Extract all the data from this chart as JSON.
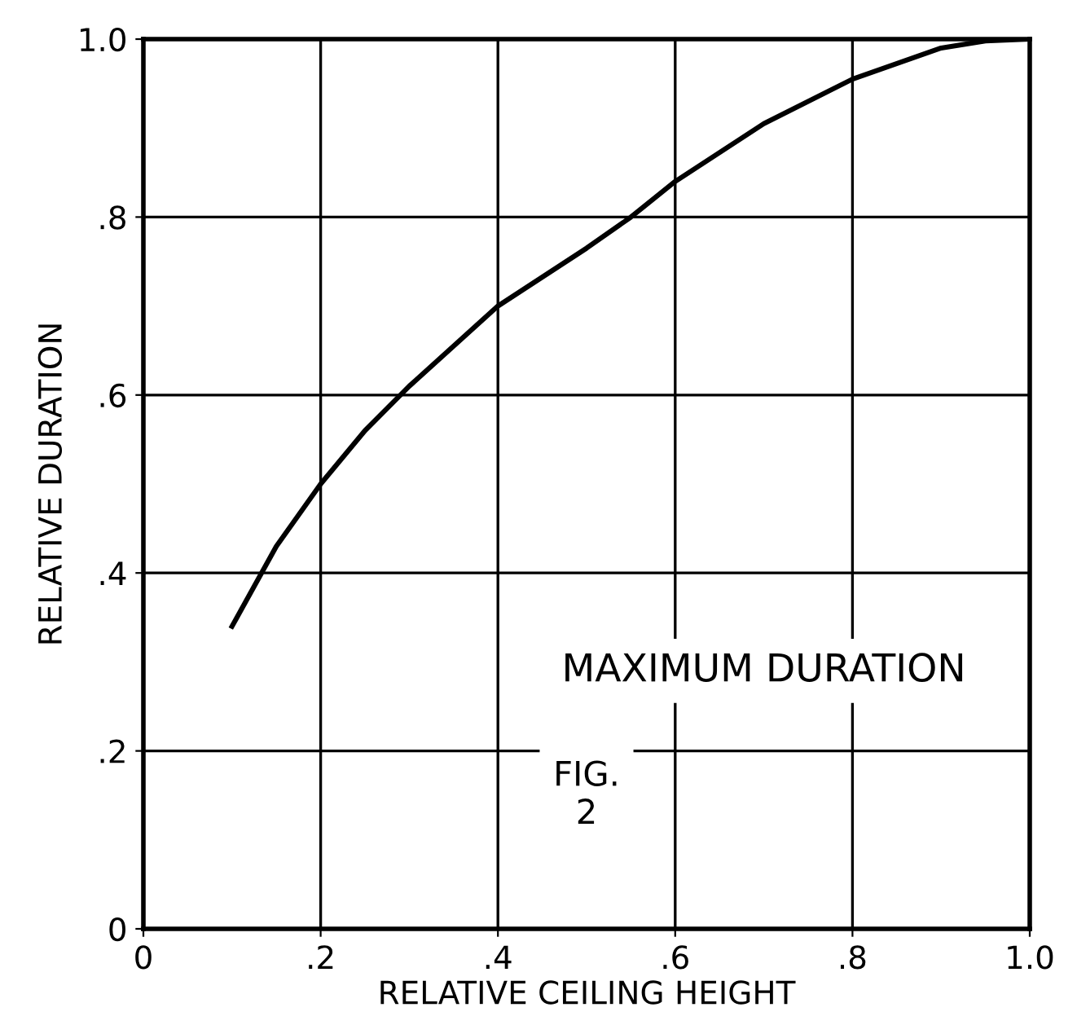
{
  "chart_data": {
    "type": "line",
    "xlabel": "RELATIVE CEILING HEIGHT",
    "ylabel": "RELATIVE DURATION",
    "annotations": [
      "MAXIMUM DURATION",
      "FIG.\n2"
    ],
    "x": [
      0.1,
      0.15,
      0.2,
      0.25,
      0.3,
      0.4,
      0.5,
      0.55,
      0.6,
      0.7,
      0.8,
      0.9,
      0.95,
      1.0
    ],
    "series": [
      {
        "color": "#000000",
        "values": [
          0.34,
          0.43,
          0.5,
          0.56,
          0.61,
          0.7,
          0.765,
          0.8,
          0.84,
          0.905,
          0.955,
          0.99,
          0.998,
          1.0
        ]
      }
    ],
    "xlim": [
      0,
      1.0
    ],
    "ylim": [
      0,
      1.0
    ],
    "xticks": [
      {
        "value": 0,
        "label": "0"
      },
      {
        "value": 0.2,
        "label": ".2"
      },
      {
        "value": 0.4,
        "label": ".4"
      },
      {
        "value": 0.6,
        "label": ".6"
      },
      {
        "value": 0.8,
        "label": ".8"
      },
      {
        "value": 1.0,
        "label": "1.0"
      }
    ],
    "yticks": [
      {
        "value": 0,
        "label": "0"
      },
      {
        "value": 0.2,
        "label": ".2"
      },
      {
        "value": 0.4,
        "label": ".4"
      },
      {
        "value": 0.6,
        "label": ".6"
      },
      {
        "value": 0.8,
        "label": ".8"
      },
      {
        "value": 1.0,
        "label": "1.0"
      }
    ],
    "grid": true
  }
}
